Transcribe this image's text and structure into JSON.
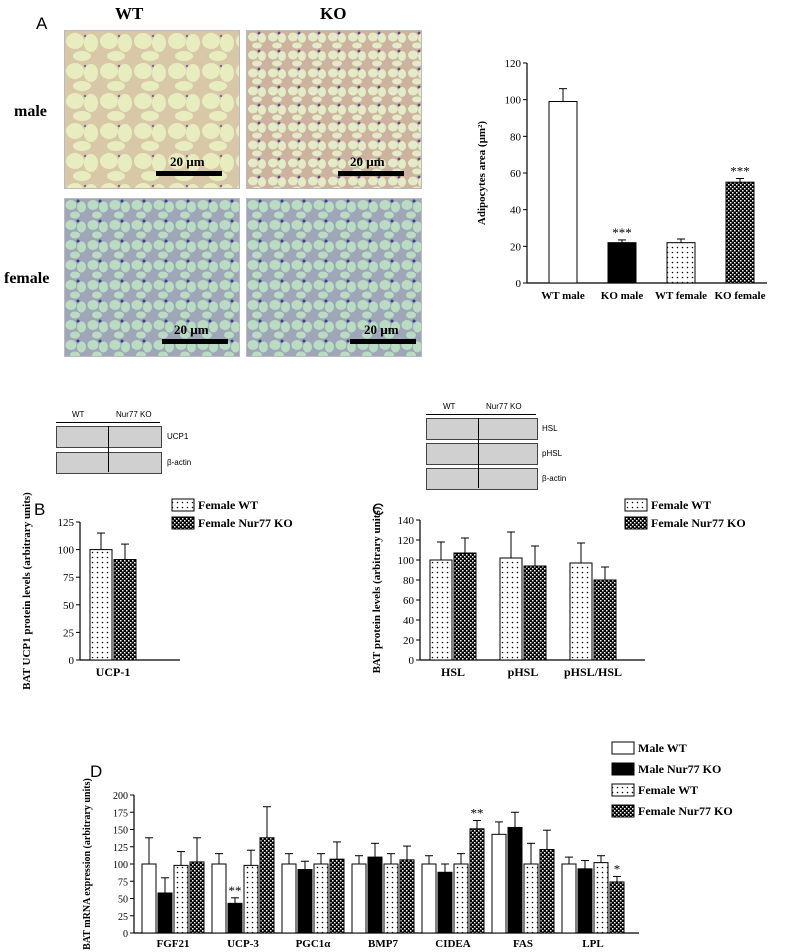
{
  "labels": {
    "panel_a": "A",
    "panel_b": "B",
    "panel_c": "C",
    "panel_d": "D",
    "col_wt": "WT",
    "col_ko": "KO",
    "row_male": "male",
    "row_female": "female",
    "scale": "20 µm"
  },
  "blots": {
    "b_wt": "WT",
    "b_ko": "Nur77 KO",
    "b_ucp1": "UCP1",
    "b_actin": "β-actin",
    "c_wt": "WT",
    "c_ko": "Nur77 KO",
    "c_hsl": "HSL",
    "c_phsl": "pHSL",
    "c_actin": "β-actin"
  },
  "chart_data": [
    {
      "id": "A",
      "type": "bar",
      "categories": [
        "WT male",
        "KO male",
        "WT female",
        "KO female"
      ],
      "values": [
        99,
        22,
        22,
        55
      ],
      "errors": [
        7,
        1.5,
        2,
        2
      ],
      "fills": [
        "white",
        "black",
        "dots",
        "checker"
      ],
      "significance": [
        "",
        "***",
        "",
        "***"
      ],
      "ylabel": "Adipocytes area (µm²)",
      "ylim": [
        0,
        120
      ],
      "yticks": [
        "0",
        "20",
        "40",
        "60",
        "80",
        "100",
        "120"
      ]
    },
    {
      "id": "B",
      "type": "bar",
      "categories": [
        "UCP-1"
      ],
      "series": [
        {
          "name": "Female WT",
          "fill": "dots",
          "values": [
            100
          ],
          "errors": [
            15
          ]
        },
        {
          "name": "Female Nur77 KO",
          "fill": "checker",
          "values": [
            91
          ],
          "errors": [
            14
          ]
        }
      ],
      "ylabel": "BAT UCP1 protein levels (arbitrary units)",
      "ylim": [
        0,
        125
      ],
      "yticks": [
        "0",
        "25",
        "50",
        "75",
        "100",
        "125"
      ]
    },
    {
      "id": "C",
      "type": "bar",
      "categories": [
        "HSL",
        "pHSL",
        "pHSL/HSL"
      ],
      "series": [
        {
          "name": "Female WT",
          "fill": "dots",
          "values": [
            100,
            102,
            97
          ],
          "errors": [
            18,
            26,
            20
          ]
        },
        {
          "name": "Female Nur77 KO",
          "fill": "checker",
          "values": [
            107,
            94,
            80
          ],
          "errors": [
            15,
            20,
            13
          ]
        }
      ],
      "ylabel": "BAT protein levels (arbitrary units)",
      "ylim": [
        0,
        140
      ],
      "yticks": [
        "0",
        "20",
        "40",
        "60",
        "80",
        "100",
        "120",
        "140"
      ]
    },
    {
      "id": "D",
      "type": "bar",
      "categories": [
        "FGF21",
        "UCP-3",
        "PGC1α",
        "BMP7",
        "CIDEA",
        "FAS",
        "LPL"
      ],
      "series": [
        {
          "name": "Male WT",
          "fill": "white",
          "values": [
            100,
            100,
            100,
            100,
            100,
            143,
            100
          ],
          "errors": [
            38,
            15,
            15,
            12,
            12,
            18,
            10
          ]
        },
        {
          "name": "Male Nur77 KO",
          "fill": "black",
          "values": [
            58,
            43,
            92,
            110,
            88,
            153,
            93
          ],
          "errors": [
            22,
            8,
            12,
            20,
            12,
            22,
            12
          ]
        },
        {
          "name": "Female WT",
          "fill": "dots",
          "values": [
            98,
            98,
            100,
            100,
            100,
            100,
            102
          ],
          "errors": [
            20,
            22,
            15,
            15,
            15,
            30,
            10
          ]
        },
        {
          "name": "Female Nur77 KO",
          "fill": "checker",
          "values": [
            103,
            138,
            107,
            106,
            151,
            121,
            74
          ],
          "errors": [
            35,
            45,
            25,
            20,
            12,
            28,
            8
          ]
        }
      ],
      "significance": [
        {
          "category": "UCP-3",
          "series": "Male Nur77 KO",
          "mark": "**"
        },
        {
          "category": "CIDEA",
          "series": "Female Nur77 KO",
          "mark": "**"
        },
        {
          "category": "LPL",
          "series": "Female Nur77 KO",
          "mark": "*"
        }
      ],
      "ylabel": "BAT mRNA expression (arbitrary units)",
      "ylim": [
        0,
        200
      ],
      "yticks": [
        "0",
        "25",
        "50",
        "75",
        "100",
        "125",
        "150",
        "175",
        "200"
      ]
    }
  ]
}
